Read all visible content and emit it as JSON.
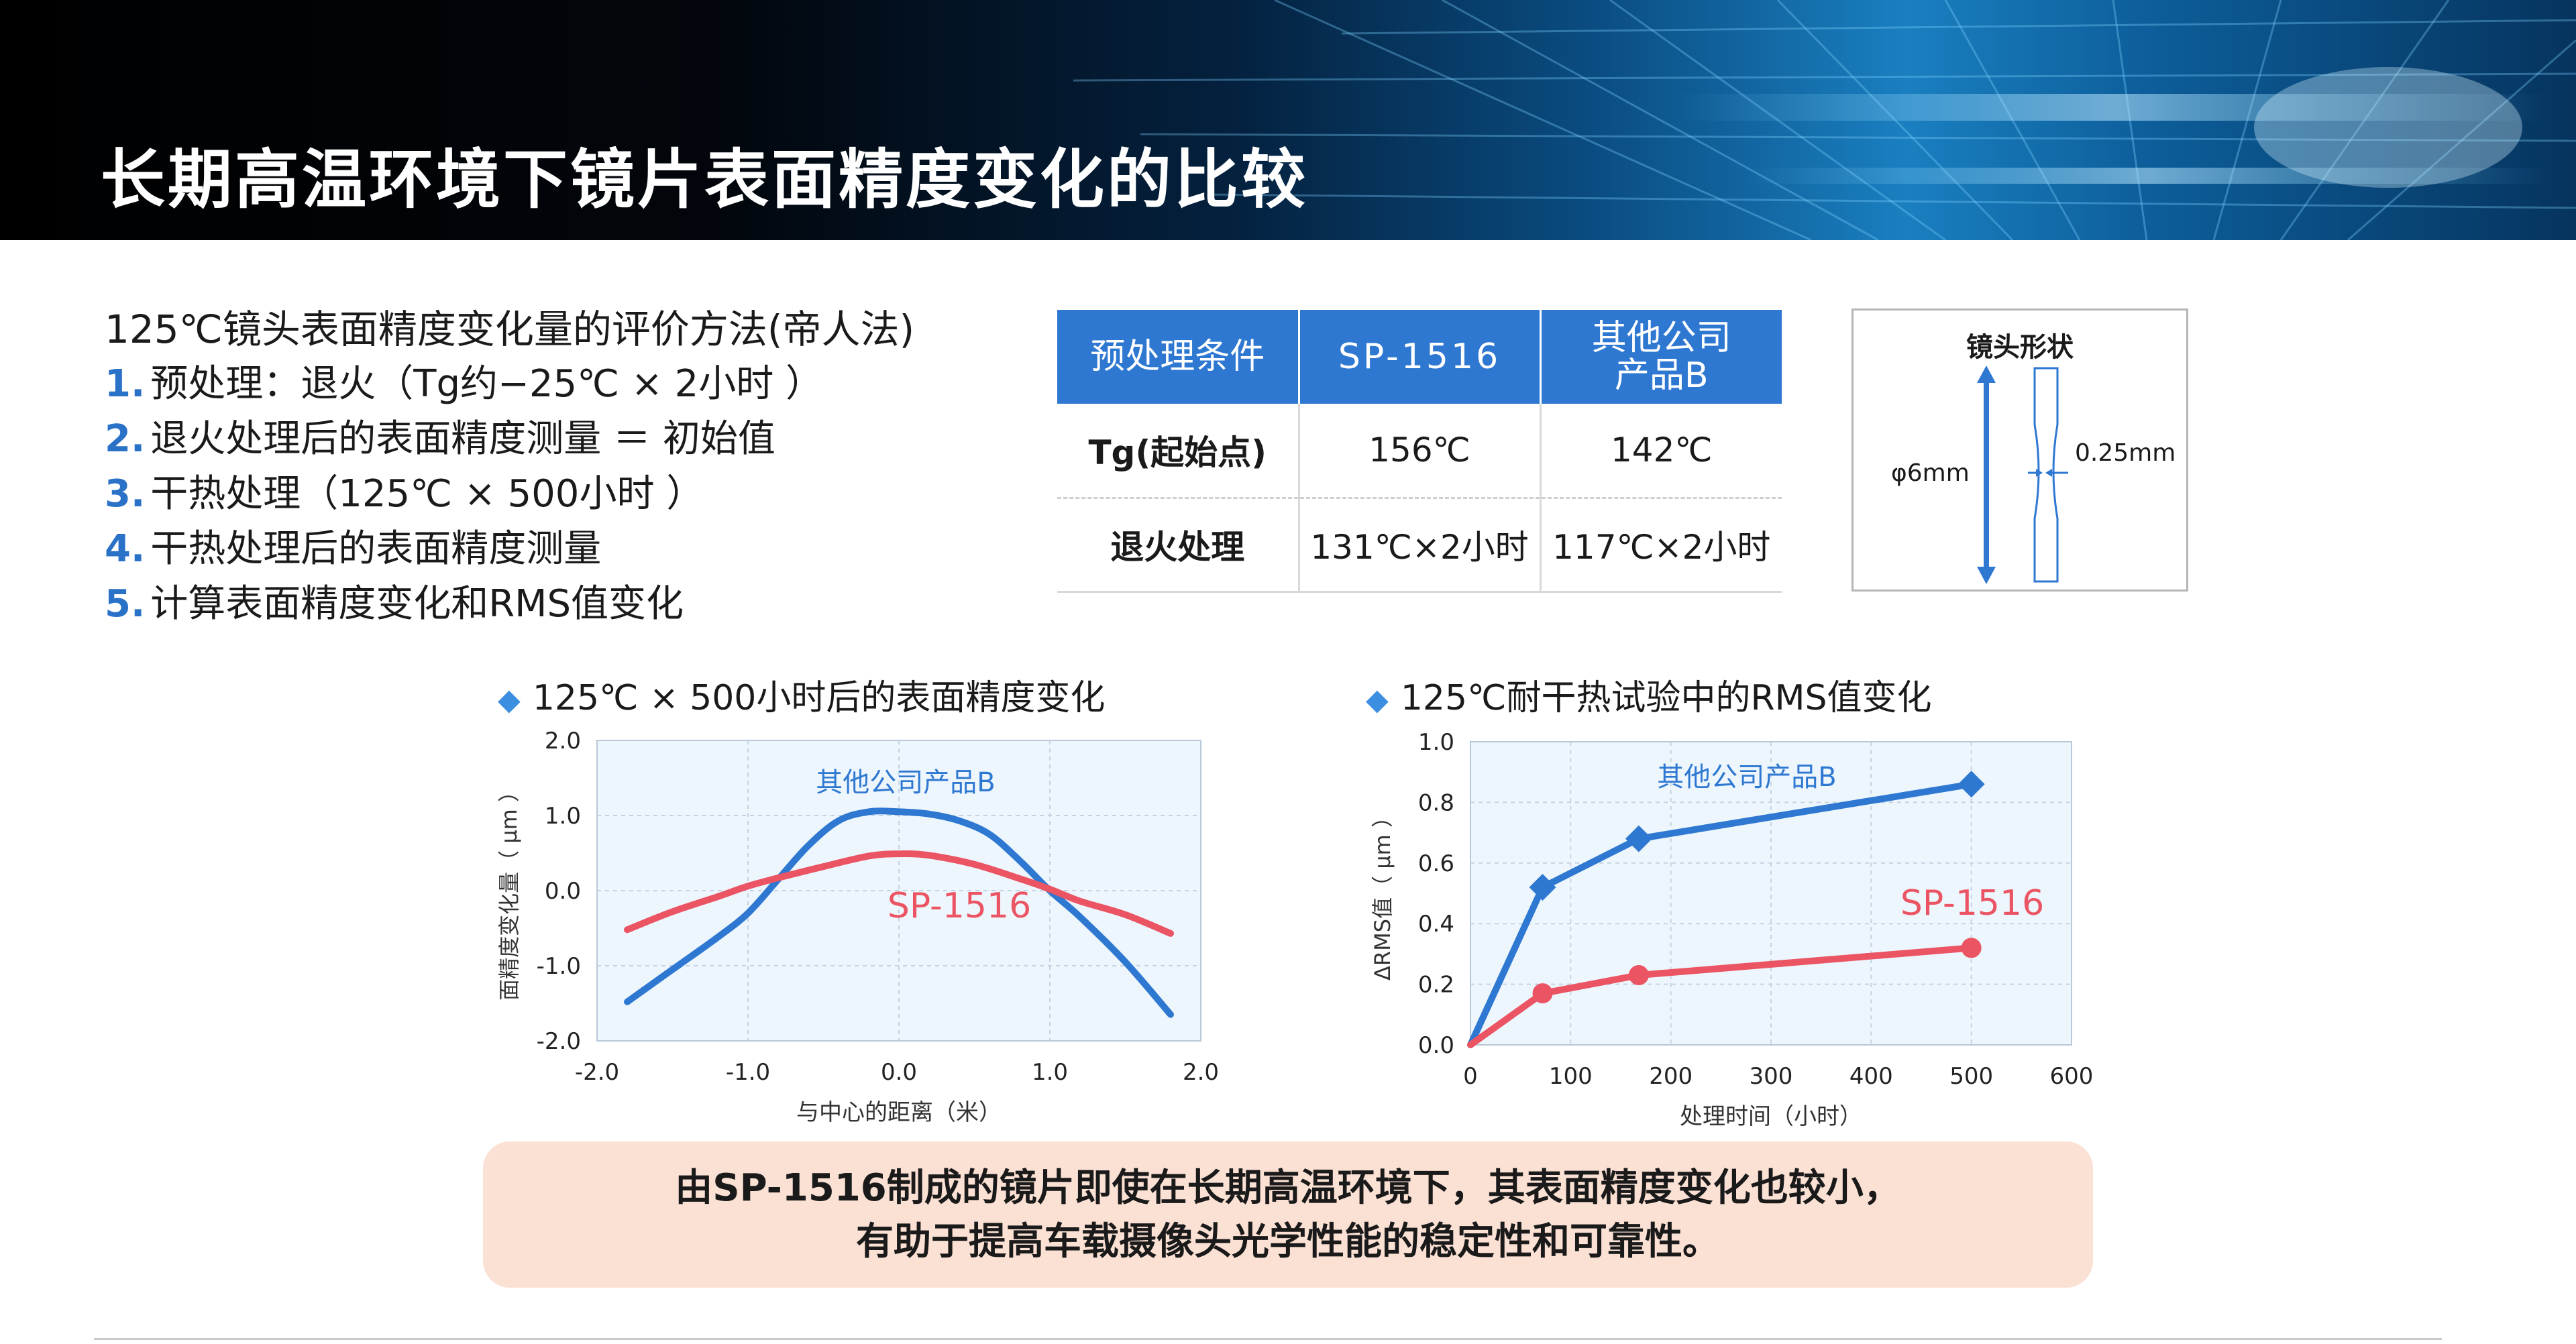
{
  "header": {
    "title": "长期高温环境下镜片表面精度变化的比较"
  },
  "method": {
    "title": "125℃镜头表面精度变化量的评价方法(帝人法)",
    "steps": [
      {
        "num": "1.",
        "text": "预处理：退火（Tg约−25℃ × 2小时 ）"
      },
      {
        "num": "2.",
        "text": "退火处理后的表面精度测量 ＝ 初始值"
      },
      {
        "num": "3.",
        "text": "干热处理（125℃ × 500小时 ）"
      },
      {
        "num": "4.",
        "text": "干热处理后的表面精度测量"
      },
      {
        "num": "5.",
        "text": "计算表面精度变化和RMS值变化"
      }
    ]
  },
  "table": {
    "headers": [
      "预处理条件",
      "SP-1516",
      "其他公司产品B"
    ],
    "rows": [
      [
        "Tg(起始点)",
        "156℃",
        "142℃"
      ],
      [
        "退火处理",
        "131℃×2小时",
        "117℃×2小时"
      ]
    ]
  },
  "lens": {
    "title": "镜头形状",
    "diameter": "φ6mm",
    "thickness": "0.25mm"
  },
  "colors": {
    "blue": "#2e78d2",
    "red": "#eb5463",
    "plot_bg": "#eef6fd",
    "header_blue": "#2e78d2"
  },
  "chart_data": [
    {
      "type": "line",
      "title": "125℃ × 500小时后的表面精度变化",
      "xlabel": "与中心的距离（米）",
      "ylabel": "面精度变化量（ μm ）",
      "xlim": [
        -2.0,
        2.0
      ],
      "ylim": [
        -2.0,
        2.0
      ],
      "xticks": [
        "-2.0",
        "-1.0",
        "0.0",
        "1.0",
        "2.0"
      ],
      "yticks": [
        "2.0",
        "1.0",
        "0.0",
        "-1.0",
        "-2.0"
      ],
      "grid": true,
      "series": [
        {
          "name": "其他公司产品B",
          "color": "#2e78d2",
          "x": [
            -1.8,
            -1.5,
            -1.2,
            -1.0,
            -0.8,
            -0.6,
            -0.4,
            -0.2,
            0.0,
            0.2,
            0.4,
            0.6,
            0.8,
            1.0,
            1.2,
            1.5,
            1.8
          ],
          "y": [
            -1.48,
            -1.05,
            -0.62,
            -0.3,
            0.15,
            0.6,
            0.93,
            1.05,
            1.05,
            1.02,
            0.93,
            0.75,
            0.4,
            0.0,
            -0.35,
            -0.95,
            -1.65
          ]
        },
        {
          "name": "SP-1516",
          "color": "#eb5463",
          "x": [
            -1.8,
            -1.5,
            -1.2,
            -1.0,
            -0.8,
            -0.5,
            -0.2,
            0.0,
            0.2,
            0.5,
            0.8,
            1.0,
            1.2,
            1.5,
            1.8
          ],
          "y": [
            -0.52,
            -0.28,
            -0.08,
            0.06,
            0.17,
            0.32,
            0.46,
            0.49,
            0.47,
            0.35,
            0.16,
            0.02,
            -0.14,
            -0.32,
            -0.57
          ]
        }
      ]
    },
    {
      "type": "line",
      "title": "125℃耐干热试验中的RMS值变化",
      "xlabel": "处理时间（小时）",
      "ylabel": "ΔRMS值（ μm ）",
      "xlim": [
        0,
        600
      ],
      "ylim": [
        0.0,
        1.0
      ],
      "xticks": [
        "0",
        "100",
        "200",
        "300",
        "400",
        "500",
        "600"
      ],
      "yticks": [
        "1.0",
        "0.8",
        "0.6",
        "0.4",
        "0.2",
        "0.0"
      ],
      "grid": true,
      "series": [
        {
          "name": "其他公司产品B",
          "color": "#2e78d2",
          "marker": "diamond",
          "x": [
            0,
            72,
            168,
            500
          ],
          "y": [
            0.0,
            0.52,
            0.68,
            0.86
          ]
        },
        {
          "name": "SP-1516",
          "color": "#eb5463",
          "marker": "circle",
          "x": [
            0,
            72,
            168,
            500
          ],
          "y": [
            0.0,
            0.17,
            0.23,
            0.32
          ]
        }
      ]
    }
  ],
  "conclusion": {
    "line1": "由SP-1516制成的镜片即使在长期高温环境下，其表面精度变化也较小，",
    "line2": "有助于提高车载摄像头光学性能的稳定性和可靠性。"
  }
}
